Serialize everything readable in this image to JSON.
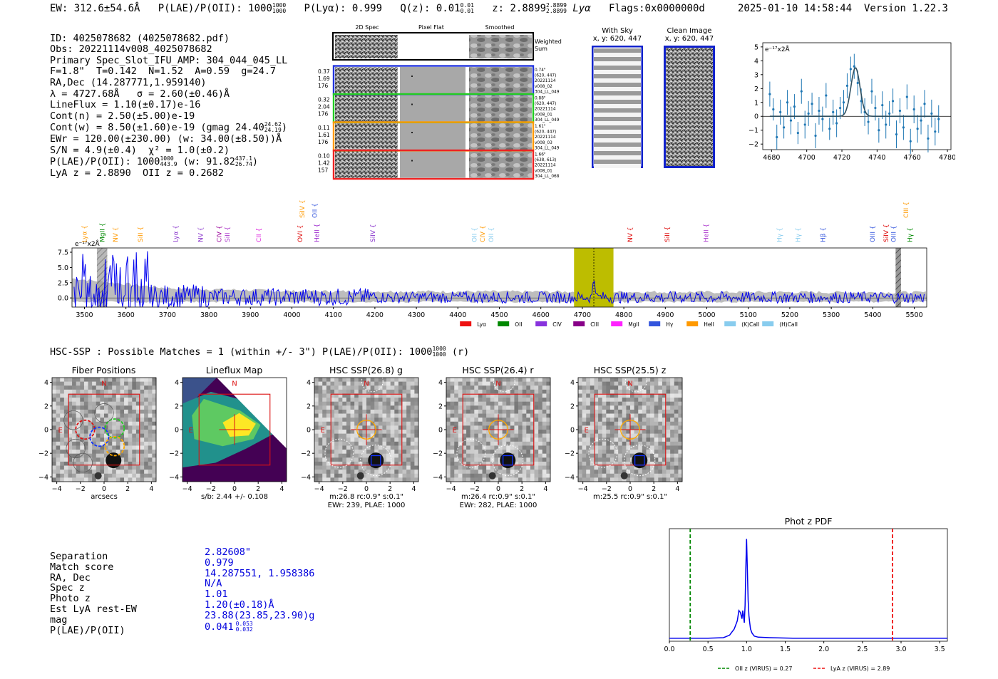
{
  "header": {
    "ew": "EW: 312.6±54.6Å",
    "plae": "P(LAE)/P(OII): 1000",
    "plae_sup": "1000",
    "plae_sub": "1000",
    "plya": "P(Lyα): 0.999",
    "qz": "Q(z): 0.01",
    "qz_sup": "0.01",
    "qz_sub": "0.01",
    "z": "z: 2.8899",
    "z_sup": "2.8899",
    "z_sub": "2.8899",
    "line": "Lyα",
    "flags": "Flags:0x0000000d",
    "timestamp": "2025-01-10 14:58:44",
    "version": "Version 1.22.3"
  },
  "summary": {
    "id": "ID: 4025078682 (4025078682.pdf)",
    "obs": "Obs: 20221114v008_4025078682",
    "primary": "Primary Spec_Slot_IFU_AMP: 304_044_045_LL",
    "fwhm": "F=1.8\"  T=0.142  N=1.52  A=0.59  g=24.7",
    "radec": "RA,Dec (14.287771,1.959140)",
    "lambda": "λ = 4727.68Å   σ = 2.60(±0.46)Å",
    "lineflux": "LineFlux = 1.10(±0.17)e-16",
    "contn": "Cont(n) = 2.50(±5.00)e-19",
    "contw": "Cont(w) = 8.50(±1.60)e-19 (gmag 24.40",
    "contw_sup": "24.62",
    "contw_sub": "24.19",
    "contw_end": ")",
    "ewr": "EWr = 120.00(±230.00) (w: 34.00(±8.50))Å",
    "sn": "S/N = 4.9(±0.4)  χ² = 1.0(±0.2)",
    "plae": "P(LAE)/P(OII): 1000",
    "plae_sup": "1000",
    "plae_sub": "443.9",
    "plae_w": "(w: 91.82",
    "plae_w_sup": "437.1",
    "plae_w_sub": "26.74",
    "plae_w_end": ")",
    "lyaz": "LyA z = 2.8890  OII z = 0.2682"
  },
  "cutouts": {
    "headers": [
      "2D Spec",
      "Pixel Flat",
      "Smoothed"
    ],
    "weighted_sum": [
      "Weighted",
      "Sum"
    ],
    "rows": [
      {
        "left": [
          "0.37",
          "1.69",
          "176"
        ],
        "right": [
          "0.74\"",
          "(620, 447)",
          "20221114",
          "v008_02",
          "304_LL_049"
        ],
        "color": "#2233dd"
      },
      {
        "left": [
          "0.32",
          "2.04",
          "176"
        ],
        "right": [
          "0.88\"",
          "(620, 447)",
          "20221114",
          "v008_01",
          "304_LL_049"
        ],
        "color": "#22cc22"
      },
      {
        "left": [
          "0.11",
          "1.61",
          "176"
        ],
        "right": [
          "1.61\"",
          "(620, 447)",
          "20221114",
          "v008_03",
          "304_LL_049"
        ],
        "color": "#ff9900"
      },
      {
        "left": [
          "0.10",
          "1.42",
          "157"
        ],
        "right": [
          "1.66\"",
          "(638, 613)",
          "20221114",
          "v008_01",
          "304_LL_068"
        ],
        "color": "#ee2222"
      }
    ]
  },
  "with_sky": {
    "title": "With Sky",
    "coord": "x, y: 620, 447"
  },
  "clean_image": {
    "title": "Clean Image",
    "coord": "x, y: 620, 447"
  },
  "line_zoom": {
    "ylabel_unit": "e⁻¹⁷x2Å"
  },
  "full_spectrum": {
    "unit": "e⁻¹⁷x2Å"
  },
  "hsc": {
    "matches": "HSC-SSP : Possible Matches = 1 (within +/- 3\")  P(LAE)/P(OII): 1000",
    "matches_sup": "1000",
    "matches_sub": "1000",
    "matches_band": "(r)",
    "panels": [
      {
        "title": "Fiber Positions",
        "caption": [
          "arcsecs"
        ]
      },
      {
        "title": "Lineflux Map",
        "caption": [
          "s/b: 2.44 +/- 0.108"
        ]
      },
      {
        "title": "HSC SSP(26.8) g",
        "caption": [
          "m:26.8 rc:0.9\"  s:0.1\"",
          "EWr: 239, PLAE: 1000"
        ]
      },
      {
        "title": "HSC SSP(26.4) r",
        "caption": [
          "m:26.4 rc:0.9\"  s:0.1\"",
          "EWr: 282, PLAE: 1000"
        ]
      },
      {
        "title": "HSC SSP(25.5) z",
        "caption": [
          "m:25.5 rc:0.9\"  s:0.1\""
        ]
      }
    ],
    "north": "N",
    "east": "E"
  },
  "match_table": {
    "labels": [
      "Separation",
      "Match score",
      "RA, Dec",
      "Spec z",
      "Photo z",
      "Est LyA rest-EW",
      "mag",
      "P(LAE)/P(OII)"
    ],
    "values": [
      "2.82608\"",
      "0.979",
      "14.287551, 1.958386",
      "N/A",
      "1.01",
      "1.20(±0.18)Å",
      "23.88(23.85,23.90)g",
      "0.041"
    ],
    "plae_sup": "0.053",
    "plae_sub": "0.032"
  },
  "chart_data": [
    {
      "type": "line",
      "name": "line-zoom",
      "xlim": [
        4675,
        4782
      ],
      "ylim": [
        -2.4,
        5.3
      ],
      "xticks": [
        4680,
        4700,
        4720,
        4740,
        4760,
        4780
      ],
      "yticks": [
        -2,
        -1,
        0,
        1,
        2,
        3,
        4,
        5
      ],
      "ylabel": "e⁻¹⁷x2Å",
      "fit": {
        "center": 4727.7,
        "sigma": 2.6,
        "amplitude": 3.5,
        "baseline": 0.0
      },
      "points_x": [
        4679,
        4681,
        4683,
        4685,
        4687,
        4689,
        4691,
        4693,
        4695,
        4697,
        4699,
        4701,
        4703,
        4705,
        4707,
        4709,
        4711,
        4713,
        4715,
        4717,
        4719,
        4721,
        4723,
        4725,
        4727,
        4729,
        4731,
        4733,
        4735,
        4737,
        4739,
        4741,
        4743,
        4745,
        4747,
        4749,
        4751,
        4753,
        4755,
        4757,
        4759,
        4761,
        4763,
        4765,
        4767,
        4769,
        4771,
        4773,
        4775
      ],
      "points_y": [
        1.6,
        0.5,
        -1.5,
        0.3,
        -0.8,
        1.0,
        -0.3,
        0.7,
        -1.2,
        1.8,
        -0.6,
        0.2,
        0.9,
        -1.4,
        0.4,
        -0.2,
        1.5,
        -0.9,
        0.3,
        -0.5,
        0.6,
        1.0,
        2.2,
        3.4,
        3.6,
        2.4,
        1.1,
        0.3,
        -0.4,
        1.8,
        0.6,
        -1.0,
        0.8,
        -0.6,
        0.2,
        1.1,
        -1.3,
        0.4,
        -0.8,
        1.4,
        -1.8,
        0.5,
        -0.9,
        -0.3,
        0.9,
        -1.6,
        0.2,
        -1.1,
        -0.2
      ],
      "errors": [
        0.9,
        0.8,
        0.9,
        0.9,
        0.8,
        0.9,
        1.0,
        0.9,
        0.8,
        0.9,
        1.0,
        0.9,
        0.8,
        0.9,
        1.0,
        0.9,
        0.9,
        0.8,
        0.9,
        1.0,
        0.8,
        0.9,
        0.9,
        0.9,
        0.9,
        0.9,
        0.9,
        1.0,
        0.9,
        0.9,
        0.9,
        0.9,
        1.0,
        1.0,
        0.9,
        0.9,
        1.0,
        0.9,
        0.9,
        0.9,
        0.9,
        1.0,
        1.0,
        1.0,
        1.0,
        1.0,
        1.0,
        1.0,
        1.0
      ]
    },
    {
      "type": "line",
      "name": "full-spectrum",
      "xlim": [
        3470,
        5530
      ],
      "ylim": [
        -1.5,
        8.2
      ],
      "xticks": [
        3500,
        3600,
        3700,
        3800,
        3900,
        4000,
        4100,
        4200,
        4300,
        4400,
        4500,
        4600,
        4700,
        4800,
        4900,
        5000,
        5100,
        5200,
        5300,
        5400,
        5500
      ],
      "yticks": [
        0.0,
        2.5,
        5.0,
        7.5
      ],
      "ytick_labels": [
        "0.0",
        "2.5",
        "5.0",
        "7.5"
      ],
      "highlight_band": [
        4680,
        4775
      ],
      "line_center": 4727.7,
      "hatched_band": [
        5455,
        5468
      ],
      "left_hatched_band": [
        3530,
        3555
      ],
      "emission_lines": [
        {
          "label": "Lyα",
          "wave": 3505,
          "row": "low",
          "color": "#ff9900"
        },
        {
          "label": "MgII",
          "wave": 3548,
          "row": "low",
          "color": "#008800"
        },
        {
          "label": "NV",
          "wave": 3580,
          "row": "low",
          "color": "#ff9900"
        },
        {
          "label": "SiII",
          "wave": 3640,
          "row": "low",
          "color": "#ff9900"
        },
        {
          "label": "Lyα",
          "wave": 3725,
          "row": "low",
          "color": "#8833cc"
        },
        {
          "label": "NV",
          "wave": 3785,
          "row": "low",
          "color": "#8833cc"
        },
        {
          "label": "CIV",
          "wave": 3830,
          "row": "low",
          "color": "#990099"
        },
        {
          "label": "SiII",
          "wave": 3850,
          "row": "low",
          "color": "#aa33cc"
        },
        {
          "label": "CII",
          "wave": 3925,
          "row": "low",
          "color": "#dd22dd"
        },
        {
          "label": "SiIV",
          "wave": 4030,
          "row": "high",
          "color": "#ff9900"
        },
        {
          "label": "OII",
          "wave": 4060,
          "row": "high",
          "color": "#3355dd"
        },
        {
          "label": "OVI",
          "wave": 4025,
          "row": "low",
          "color": "#dd0000"
        },
        {
          "label": "HeII",
          "wave": 4065,
          "row": "low",
          "color": "#9922cc"
        },
        {
          "label": "SiIV",
          "wave": 4200,
          "row": "low",
          "color": "#8833cc"
        },
        {
          "label": "OII",
          "wave": 4445,
          "row": "low",
          "color": "#88ccee"
        },
        {
          "label": "CIV",
          "wave": 4465,
          "row": "low",
          "color": "#ff9900"
        },
        {
          "label": "OII",
          "wave": 4485,
          "row": "low",
          "color": "#88ccee"
        },
        {
          "label": "NV",
          "wave": 4820,
          "row": "low",
          "color": "#dd0000"
        },
        {
          "label": "SiII",
          "wave": 4910,
          "row": "low",
          "color": "#dd0000"
        },
        {
          "label": "HeII",
          "wave": 5003,
          "row": "low",
          "color": "#aa33cc"
        },
        {
          "label": "Hγ",
          "wave": 5180,
          "row": "low",
          "color": "#88ccee"
        },
        {
          "label": "Hγ",
          "wave": 5225,
          "row": "low",
          "color": "#88ccee"
        },
        {
          "label": "Hβ",
          "wave": 5285,
          "row": "low",
          "color": "#3355dd"
        },
        {
          "label": "OIII",
          "wave": 5405,
          "row": "low",
          "color": "#3355dd"
        },
        {
          "label": "SiIV",
          "wave": 5437,
          "row": "low",
          "color": "#dd0000"
        },
        {
          "label": "OIII",
          "wave": 5455,
          "row": "low",
          "color": "#3355dd"
        },
        {
          "label": "CIII",
          "wave": 5485,
          "row": "high",
          "color": "#ff9900"
        },
        {
          "label": "Hγ",
          "wave": 5495,
          "row": "low",
          "color": "#008800"
        }
      ],
      "legend": [
        {
          "label": "Lyα",
          "color": "#ee1111"
        },
        {
          "label": "OII",
          "color": "#008800"
        },
        {
          "label": "CIV",
          "color": "#8833dd"
        },
        {
          "label": "CIII",
          "color": "#880088"
        },
        {
          "label": "MgII",
          "color": "#ff22ff"
        },
        {
          "label": "Hγ",
          "color": "#3355dd"
        },
        {
          "label": "HeII",
          "color": "#ff9900"
        },
        {
          "label": "(K)CaII",
          "color": "#88ccee"
        },
        {
          "label": "(H)CaII",
          "color": "#88ccee"
        }
      ]
    },
    {
      "type": "line",
      "name": "photz-pdf",
      "title": "Phot z PDF",
      "xlim": [
        0.0,
        3.6
      ],
      "ylim": [
        0,
        1.1
      ],
      "xticks": [
        0.0,
        0.5,
        1.0,
        1.5,
        2.0,
        2.5,
        3.0,
        3.5
      ],
      "xtick_labels": [
        "0.0",
        "0.5",
        "1.0",
        "1.5",
        "2.0",
        "2.5",
        "3.0",
        "3.5"
      ],
      "pdf_x": [
        0.0,
        0.5,
        0.7,
        0.78,
        0.84,
        0.88,
        0.9,
        0.92,
        0.94,
        0.95,
        0.96,
        0.97,
        0.98,
        0.99,
        1.0,
        1.01,
        1.02,
        1.03,
        1.04,
        1.05,
        1.07,
        1.1,
        1.15,
        1.3,
        1.6,
        2.0,
        3.0,
        3.6
      ],
      "pdf_y": [
        0.03,
        0.03,
        0.035,
        0.06,
        0.12,
        0.2,
        0.3,
        0.28,
        0.22,
        0.3,
        0.25,
        0.18,
        0.35,
        0.7,
        1.0,
        0.7,
        0.4,
        0.25,
        0.18,
        0.12,
        0.08,
        0.05,
        0.04,
        0.035,
        0.03,
        0.03,
        0.03,
        0.03
      ],
      "vlines": [
        {
          "x": 0.27,
          "label": "OII z (VIRUS) = 0.27",
          "color": "#008800"
        },
        {
          "x": 2.89,
          "label": "LyA z (VIRUS) = 2.89",
          "color": "#ee1111"
        }
      ]
    }
  ]
}
